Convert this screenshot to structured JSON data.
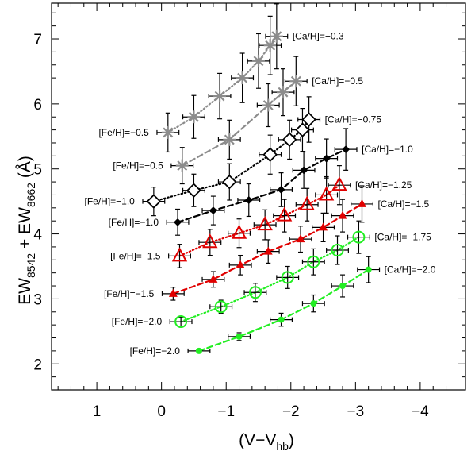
{
  "chart_data": {
    "type": "scatter",
    "xlabel": "(V−V",
    "xlabel_sub": "hb",
    "xlabel_close": ")",
    "ylabel_parts": [
      "EW",
      "8542",
      " + EW",
      "8662",
      " (Å)"
    ],
    "xlim": [
      1.7,
      -4.7
    ],
    "ylim": [
      1.6,
      7.55
    ],
    "x_ticks": [
      1,
      0,
      -1,
      -2,
      -3,
      -4
    ],
    "x_tick_labels": [
      "1",
      "0",
      "−1",
      "−2",
      "−3",
      "−4"
    ],
    "y_ticks": [
      2,
      3,
      4,
      5,
      6,
      7
    ],
    "y_tick_labels": [
      "2",
      "3",
      "4",
      "5",
      "6",
      "7"
    ],
    "colors": {
      "gray": "#8c8c8c",
      "black": "#000000",
      "red": "#e00000",
      "green": "#22ee22"
    },
    "series": [
      {
        "name": "[Ca/H]=−0.3 / [Fe/H]=−0.5",
        "color": "gray",
        "marker": "asterisk",
        "linestyle": "dotted",
        "x": [
          -0.1,
          -0.5,
          -0.9,
          -1.25,
          -1.5,
          -1.68,
          -1.78
        ],
        "y": [
          5.56,
          5.8,
          6.12,
          6.4,
          6.66,
          6.9,
          7.04
        ],
        "yerr": [
          0.3,
          0.33,
          0.35,
          0.38,
          0.42,
          0.45,
          0.5
        ],
        "xerr": [
          0.17,
          0.17,
          0.17,
          0.17,
          0.17,
          0.17,
          0.17
        ]
      },
      {
        "name": "[Ca/H]=−0.5 / [Fe/H]=−0.5",
        "color": "gray",
        "marker": "asterisk",
        "linestyle": "dashed",
        "x": [
          -0.32,
          -1.05,
          -1.65,
          -1.88,
          -2.08
        ],
        "y": [
          5.05,
          5.45,
          5.98,
          6.18,
          6.35
        ],
        "yerr": [
          0.28,
          0.3,
          0.33,
          0.36,
          0.38
        ],
        "xerr": [
          0.17,
          0.17,
          0.17,
          0.17,
          0.17
        ]
      },
      {
        "name": "[Ca/H]=−0.75 / [Fe/H]=−1.0",
        "color": "black",
        "marker": "open-diamond",
        "linestyle": "dotted",
        "x": [
          0.12,
          -0.5,
          -1.05,
          -1.68,
          -1.98,
          -2.18,
          -2.28
        ],
        "y": [
          4.5,
          4.67,
          4.8,
          5.22,
          5.45,
          5.6,
          5.76
        ],
        "yerr": [
          0.22,
          0.25,
          0.28,
          0.3,
          0.3,
          0.33,
          0.35
        ],
        "xerr": [
          0.17,
          0.17,
          0.17,
          0.17,
          0.17,
          0.17,
          0.17
        ]
      },
      {
        "name": "[Ca/H]=−1.0 / [Fe/H]=−1.0",
        "color": "black",
        "marker": "filled-diamond",
        "linestyle": "dashed",
        "x": [
          -0.25,
          -0.8,
          -1.35,
          -1.85,
          -2.2,
          -2.55,
          -2.85
        ],
        "y": [
          4.18,
          4.36,
          4.52,
          4.68,
          4.98,
          5.16,
          5.3
        ],
        "yerr": [
          0.2,
          0.22,
          0.25,
          0.26,
          0.28,
          0.3,
          0.32
        ],
        "xerr": [
          0.17,
          0.17,
          0.17,
          0.17,
          0.17,
          0.17,
          0.17
        ]
      },
      {
        "name": "[Ca/H]=−1.25 / [Fe/H]=−1.5",
        "color": "red",
        "marker": "open-triangle",
        "linestyle": "dotted",
        "x": [
          -0.28,
          -0.75,
          -1.2,
          -1.6,
          -1.9,
          -2.25,
          -2.55,
          -2.75
        ],
        "y": [
          3.66,
          3.87,
          4.01,
          4.14,
          4.28,
          4.45,
          4.6,
          4.75
        ],
        "yerr": [
          0.18,
          0.2,
          0.22,
          0.23,
          0.25,
          0.25,
          0.28,
          0.3
        ],
        "xerr": [
          0.17,
          0.17,
          0.17,
          0.17,
          0.17,
          0.17,
          0.17,
          0.17
        ]
      },
      {
        "name": "[Ca/H]=−1.5 / [Fe/H]=−1.5",
        "color": "red",
        "marker": "filled-triangle",
        "linestyle": "dashed",
        "x": [
          -0.18,
          -0.8,
          -1.22,
          -1.65,
          -2.15,
          -2.5,
          -2.8,
          -3.1
        ],
        "y": [
          3.08,
          3.3,
          3.52,
          3.73,
          3.92,
          4.1,
          4.28,
          4.46
        ],
        "yerr": [
          0.1,
          0.12,
          0.15,
          0.18,
          0.2,
          0.22,
          0.25,
          0.28
        ],
        "xerr": [
          0.17,
          0.17,
          0.17,
          0.17,
          0.17,
          0.17,
          0.17,
          0.17
        ]
      },
      {
        "name": "[Ca/H]=−1.75 / [Fe/H]=−2.0",
        "color": "green",
        "marker": "open-circle",
        "linestyle": "dotted",
        "x": [
          -0.3,
          -0.92,
          -1.45,
          -1.95,
          -2.35,
          -2.72,
          -3.05
        ],
        "y": [
          2.65,
          2.88,
          3.1,
          3.33,
          3.57,
          3.75,
          3.95
        ],
        "yerr": [
          0.07,
          0.1,
          0.14,
          0.17,
          0.2,
          0.22,
          0.25
        ],
        "xerr": [
          0.17,
          0.17,
          0.17,
          0.17,
          0.17,
          0.17,
          0.17
        ]
      },
      {
        "name": "[Ca/H]=−2.0 / [Fe/H]=−2.0",
        "color": "green",
        "marker": "filled-circle",
        "linestyle": "dashed",
        "x": [
          -0.58,
          -1.2,
          -1.85,
          -2.35,
          -2.8,
          -3.2
        ],
        "y": [
          2.2,
          2.42,
          2.68,
          2.93,
          3.2,
          3.45
        ],
        "yerr": [
          0.03,
          0.06,
          0.1,
          0.13,
          0.17,
          0.2
        ],
        "xerr": [
          0.17,
          0.17,
          0.17,
          0.17,
          0.17,
          0.17
        ]
      }
    ],
    "labels_right": [
      "[Ca/H]=−0.3",
      "[Ca/H]=−0.5",
      "[Ca/H]=−0.75",
      "[Ca/H]=−1.0",
      "[Ca/H]=−1.25",
      "[Ca/H]=−1.5",
      "[Ca/H]=−1.75",
      "[Ca/H]=−2.0"
    ],
    "labels_left": [
      "[Fe/H]=−0.5",
      "[Fe/H]=−0.5",
      "[Fe/H]=−1.0",
      "[Fe/H]=−1.0",
      "[Fe/H]=−1.5",
      "[Fe/H]=−1.5",
      "[Fe/H]=−2.0",
      "[Fe/H]=−2.0"
    ]
  }
}
